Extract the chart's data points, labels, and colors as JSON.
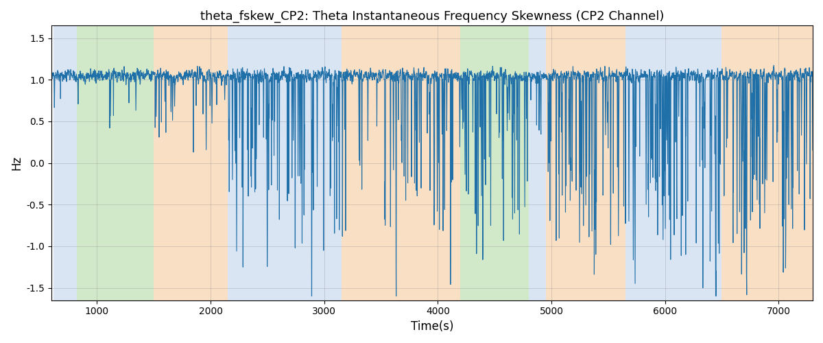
{
  "title": "theta_fskew_CP2: Theta Instantaneous Frequency Skewness (CP2 Channel)",
  "xlabel": "Time(s)",
  "ylabel": "Hz",
  "xlim": [
    600,
    7300
  ],
  "ylim": [
    -1.65,
    1.65
  ],
  "yticks": [
    -1.5,
    -1.0,
    -0.5,
    0.0,
    0.5,
    1.0,
    1.5
  ],
  "xticks": [
    1000,
    2000,
    3000,
    4000,
    5000,
    6000,
    7000
  ],
  "line_color": "#1f6fa8",
  "line_width": 0.8,
  "bg_bands": [
    {
      "xstart": 620,
      "xend": 820,
      "color": "#aec6e8",
      "alpha": 0.45
    },
    {
      "xstart": 820,
      "xend": 1500,
      "color": "#90c878",
      "alpha": 0.4
    },
    {
      "xstart": 1500,
      "xend": 2150,
      "color": "#f5c08a",
      "alpha": 0.5
    },
    {
      "xstart": 2150,
      "xend": 3150,
      "color": "#aec6e8",
      "alpha": 0.45
    },
    {
      "xstart": 3150,
      "xend": 4200,
      "color": "#f5c08a",
      "alpha": 0.5
    },
    {
      "xstart": 4200,
      "xend": 4800,
      "color": "#90c878",
      "alpha": 0.4
    },
    {
      "xstart": 4800,
      "xend": 4950,
      "color": "#aec6e8",
      "alpha": 0.45
    },
    {
      "xstart": 4950,
      "xend": 5650,
      "color": "#f5c08a",
      "alpha": 0.5
    },
    {
      "xstart": 5650,
      "xend": 6500,
      "color": "#aec6e8",
      "alpha": 0.45
    },
    {
      "xstart": 6500,
      "xend": 7300,
      "color": "#f5c08a",
      "alpha": 0.5
    }
  ],
  "title_fontsize": 13,
  "axis_fontsize": 12,
  "tick_fontsize": 10
}
